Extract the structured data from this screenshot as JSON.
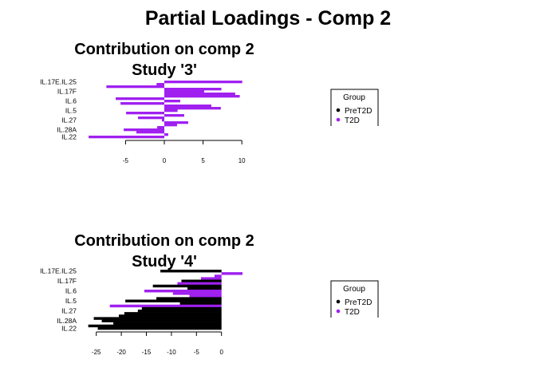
{
  "title": "Partial Loadings - Comp 2",
  "colors": {
    "PreT2D": "#000000",
    "T2D": "#A020F0"
  },
  "legend": {
    "title": "Group",
    "items": [
      "PreT2D",
      "T2D"
    ]
  },
  "chart_data": [
    {
      "type": "bar",
      "orientation": "horizontal",
      "title": "Contribution on comp 2",
      "subtitle": "Study '3'",
      "xlim": [
        -10,
        10.2
      ],
      "xticks": [
        -5,
        0,
        5,
        10
      ],
      "tick_labels": [
        "-5",
        "0",
        "5",
        "10"
      ],
      "category_labels": [
        {
          "bar": 1,
          "label": "IL.17E.IL.25"
        },
        {
          "bar": 5,
          "label": "IL.17F"
        },
        {
          "bar": 9,
          "label": "IL.6"
        },
        {
          "bar": 13,
          "label": "IL.5"
        },
        {
          "bar": 17,
          "label": "IL.27"
        },
        {
          "bar": 21,
          "label": "IL.28A"
        },
        {
          "bar": 24,
          "label": "IL.22"
        }
      ],
      "values": [
        10.05,
        -1.0,
        -7.47,
        7.36,
        5.14,
        9.14,
        9.73,
        -6.27,
        2.05,
        -5.65,
        6.06,
        7.29,
        1.71,
        -4.93,
        2.57,
        -3.39,
        -0.31,
        3.08,
        1.64,
        -0.92,
        -5.24,
        -3.6,
        0.51,
        -9.76
      ],
      "groups": [
        "T2D",
        "T2D",
        "T2D",
        "T2D",
        "T2D",
        "T2D",
        "T2D",
        "T2D",
        "T2D",
        "T2D",
        "T2D",
        "T2D",
        "T2D",
        "T2D",
        "T2D",
        "T2D",
        "T2D",
        "T2D",
        "T2D",
        "T2D",
        "T2D",
        "T2D",
        "T2D",
        "T2D"
      ],
      "legend_placement": "right"
    },
    {
      "type": "bar",
      "orientation": "horizontal",
      "title": "Contribution on comp 2",
      "subtitle": "Study '4'",
      "xlim": [
        -26.8,
        4.3
      ],
      "xticks": [
        -25,
        -20,
        -15,
        -10,
        -5,
        0
      ],
      "tick_labels": [
        "-25",
        "-20",
        "-15",
        "-10",
        "-5",
        "0"
      ],
      "category_labels": [
        {
          "bar": 1,
          "label": "IL.17E.IL.25"
        },
        {
          "bar": 5,
          "label": "IL.17F"
        },
        {
          "bar": 9,
          "label": "IL.6"
        },
        {
          "bar": 13,
          "label": "IL.5"
        },
        {
          "bar": 17,
          "label": "IL.27"
        },
        {
          "bar": 21,
          "label": "IL.28A"
        },
        {
          "bar": 24,
          "label": "IL.22"
        }
      ],
      "values": [
        -12.2,
        4.2,
        -1.4,
        -4.1,
        -8.0,
        -8.8,
        -13.7,
        -6.8,
        -15.4,
        -9.7,
        -6.4,
        -13.0,
        -19.2,
        -8.3,
        -22.3,
        -15.9,
        -16.7,
        -19.4,
        -20.5,
        -25.5,
        -23.9,
        -21.6,
        -26.6,
        -24.7
      ],
      "groups": [
        "PreT2D",
        "T2D",
        "T2D",
        "T2D",
        "PreT2D",
        "T2D",
        "PreT2D",
        "PreT2D",
        "T2D",
        "T2D",
        "T2D",
        "PreT2D",
        "PreT2D",
        "PreT2D",
        "T2D",
        "PreT2D",
        "PreT2D",
        "PreT2D",
        "PreT2D",
        "PreT2D",
        "PreT2D",
        "PreT2D",
        "PreT2D",
        "PreT2D"
      ],
      "legend_placement": "right"
    }
  ]
}
